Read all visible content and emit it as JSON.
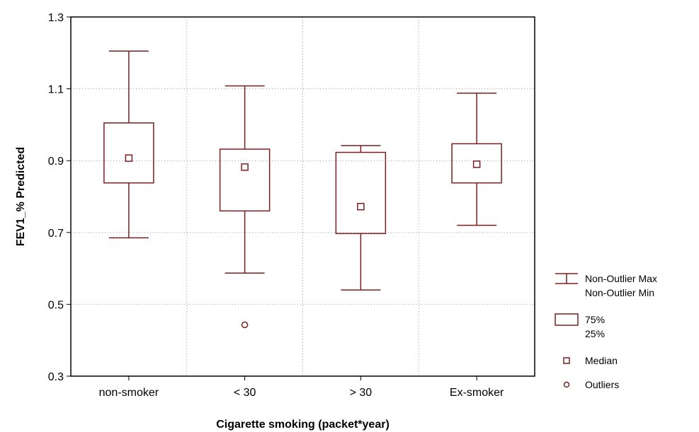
{
  "chart_data": {
    "type": "box",
    "xlabel": "Cigarette smoking (packet*year)",
    "ylabel": "FEV1_% Predicted",
    "ylim": [
      0.3,
      1.3
    ],
    "yticks": [
      "0.3",
      "0.5",
      "0.7",
      "0.9",
      "1.1",
      "1.3"
    ],
    "categories": [
      "non-smoker",
      "< 30",
      "> 30",
      "Ex-smoker"
    ],
    "series_color": "#7a1f1f",
    "grid": true,
    "legend_position": "right",
    "boxes": [
      {
        "category": "non-smoker",
        "max": 1.205,
        "q3": 1.005,
        "median": 0.907,
        "q1": 0.838,
        "min": 0.685,
        "outliers": []
      },
      {
        "category": "< 30",
        "max": 1.108,
        "q3": 0.932,
        "median": 0.882,
        "q1": 0.76,
        "min": 0.587,
        "outliers": [
          0.443
        ]
      },
      {
        "category": "> 30",
        "max": 0.942,
        "q3": 0.923,
        "median": 0.772,
        "q1": 0.697,
        "min": 0.54,
        "outliers": []
      },
      {
        "category": "Ex-smoker",
        "max": 1.088,
        "q3": 0.947,
        "median": 0.89,
        "q1": 0.838,
        "min": 0.72,
        "outliers": []
      }
    ],
    "legend": [
      {
        "type": "whisker",
        "lines": [
          "Non-Outlier Max",
          "Non-Outlier Min"
        ]
      },
      {
        "type": "box",
        "lines": [
          "75%",
          "25%"
        ]
      },
      {
        "type": "median",
        "lines": [
          "Median"
        ]
      },
      {
        "type": "outlier",
        "lines": [
          "Outliers"
        ]
      }
    ]
  }
}
